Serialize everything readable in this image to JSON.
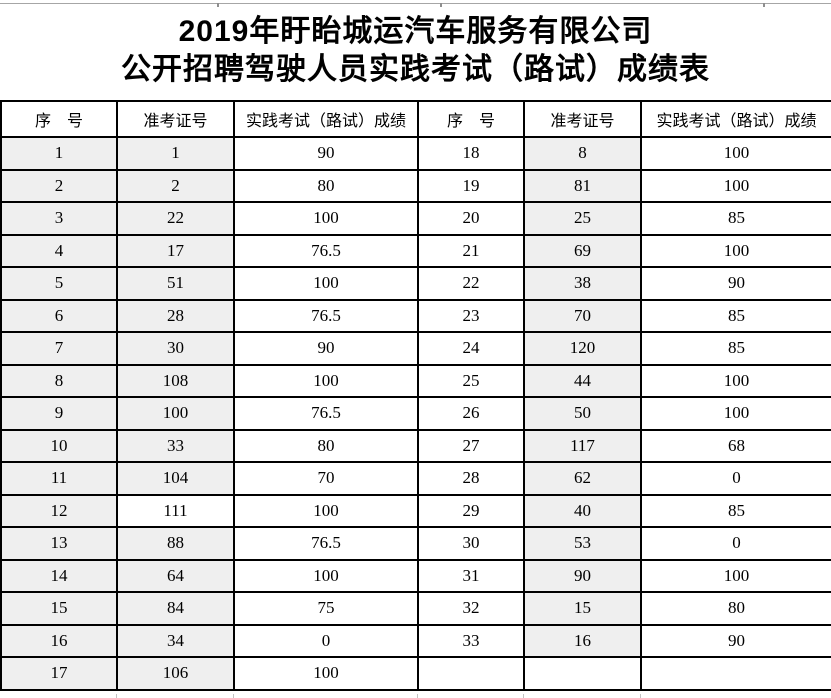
{
  "page": {
    "title_line1": "2019年盱眙城运汽车服务有限公司",
    "title_line2": "公开招聘驾驶人员实践考试（路试）成绩表"
  },
  "colors": {
    "cell_shade": "#efefef",
    "border": "#000000",
    "faint_grid": "#c3c3c3"
  },
  "table": {
    "headers": [
      "序　号",
      "准考证号",
      "实践考试（路试）成绩",
      "序　号",
      "准考证号",
      "实践考试（路试）成绩"
    ],
    "rows": [
      [
        {
          "v": "1",
          "s": 1
        },
        {
          "v": "1",
          "s": 1
        },
        {
          "v": "90",
          "s": 0
        },
        {
          "v": "18",
          "s": 0
        },
        {
          "v": "8",
          "s": 1
        },
        {
          "v": "100",
          "s": 0
        }
      ],
      [
        {
          "v": "2",
          "s": 1
        },
        {
          "v": "2",
          "s": 1
        },
        {
          "v": "80",
          "s": 0
        },
        {
          "v": "19",
          "s": 0
        },
        {
          "v": "81",
          "s": 1
        },
        {
          "v": "100",
          "s": 0
        }
      ],
      [
        {
          "v": "3",
          "s": 1
        },
        {
          "v": "22",
          "s": 1
        },
        {
          "v": "100",
          "s": 0
        },
        {
          "v": "20",
          "s": 0
        },
        {
          "v": "25",
          "s": 1
        },
        {
          "v": "85",
          "s": 0
        }
      ],
      [
        {
          "v": "4",
          "s": 1
        },
        {
          "v": "17",
          "s": 1
        },
        {
          "v": "76.5",
          "s": 0
        },
        {
          "v": "21",
          "s": 0
        },
        {
          "v": "69",
          "s": 1
        },
        {
          "v": "100",
          "s": 0
        }
      ],
      [
        {
          "v": "5",
          "s": 1
        },
        {
          "v": "51",
          "s": 1
        },
        {
          "v": "100",
          "s": 0
        },
        {
          "v": "22",
          "s": 0
        },
        {
          "v": "38",
          "s": 1
        },
        {
          "v": "90",
          "s": 0
        }
      ],
      [
        {
          "v": "6",
          "s": 1
        },
        {
          "v": "28",
          "s": 1
        },
        {
          "v": "76.5",
          "s": 0
        },
        {
          "v": "23",
          "s": 0
        },
        {
          "v": "70",
          "s": 1
        },
        {
          "v": "85",
          "s": 0
        }
      ],
      [
        {
          "v": "7",
          "s": 1
        },
        {
          "v": "30",
          "s": 1
        },
        {
          "v": "90",
          "s": 0
        },
        {
          "v": "24",
          "s": 0
        },
        {
          "v": "120",
          "s": 1
        },
        {
          "v": "85",
          "s": 0
        }
      ],
      [
        {
          "v": "8",
          "s": 1
        },
        {
          "v": "108",
          "s": 1
        },
        {
          "v": "100",
          "s": 0
        },
        {
          "v": "25",
          "s": 0
        },
        {
          "v": "44",
          "s": 1
        },
        {
          "v": "100",
          "s": 0
        }
      ],
      [
        {
          "v": "9",
          "s": 1
        },
        {
          "v": "100",
          "s": 1
        },
        {
          "v": "76.5",
          "s": 0
        },
        {
          "v": "26",
          "s": 0
        },
        {
          "v": "50",
          "s": 1
        },
        {
          "v": "100",
          "s": 0
        }
      ],
      [
        {
          "v": "10",
          "s": 1
        },
        {
          "v": "33",
          "s": 1
        },
        {
          "v": "80",
          "s": 0
        },
        {
          "v": "27",
          "s": 0
        },
        {
          "v": "117",
          "s": 1
        },
        {
          "v": "68",
          "s": 0
        }
      ],
      [
        {
          "v": "11",
          "s": 1
        },
        {
          "v": "104",
          "s": 1
        },
        {
          "v": "70",
          "s": 0
        },
        {
          "v": "28",
          "s": 0
        },
        {
          "v": "62",
          "s": 1
        },
        {
          "v": "0",
          "s": 0
        }
      ],
      [
        {
          "v": "12",
          "s": 1
        },
        {
          "v": "111",
          "s": 0
        },
        {
          "v": "100",
          "s": 0
        },
        {
          "v": "29",
          "s": 0
        },
        {
          "v": "40",
          "s": 1
        },
        {
          "v": "85",
          "s": 0
        }
      ],
      [
        {
          "v": "13",
          "s": 1
        },
        {
          "v": "88",
          "s": 1
        },
        {
          "v": "76.5",
          "s": 0
        },
        {
          "v": "30",
          "s": 0
        },
        {
          "v": "53",
          "s": 1
        },
        {
          "v": "0",
          "s": 0
        }
      ],
      [
        {
          "v": "14",
          "s": 1
        },
        {
          "v": "64",
          "s": 1
        },
        {
          "v": "100",
          "s": 0
        },
        {
          "v": "31",
          "s": 0
        },
        {
          "v": "90",
          "s": 1
        },
        {
          "v": "100",
          "s": 0
        }
      ],
      [
        {
          "v": "15",
          "s": 1
        },
        {
          "v": "84",
          "s": 1
        },
        {
          "v": "75",
          "s": 0
        },
        {
          "v": "32",
          "s": 0
        },
        {
          "v": "15",
          "s": 1
        },
        {
          "v": "80",
          "s": 0
        }
      ],
      [
        {
          "v": "16",
          "s": 1
        },
        {
          "v": "34",
          "s": 1
        },
        {
          "v": "0",
          "s": 0
        },
        {
          "v": "33",
          "s": 0
        },
        {
          "v": "16",
          "s": 1
        },
        {
          "v": "90",
          "s": 0
        }
      ],
      [
        {
          "v": "17",
          "s": 1
        },
        {
          "v": "106",
          "s": 1
        },
        {
          "v": "100",
          "s": 0
        },
        {
          "v": "",
          "s": 0
        },
        {
          "v": "",
          "s": 0
        },
        {
          "v": "",
          "s": 0
        }
      ]
    ]
  }
}
